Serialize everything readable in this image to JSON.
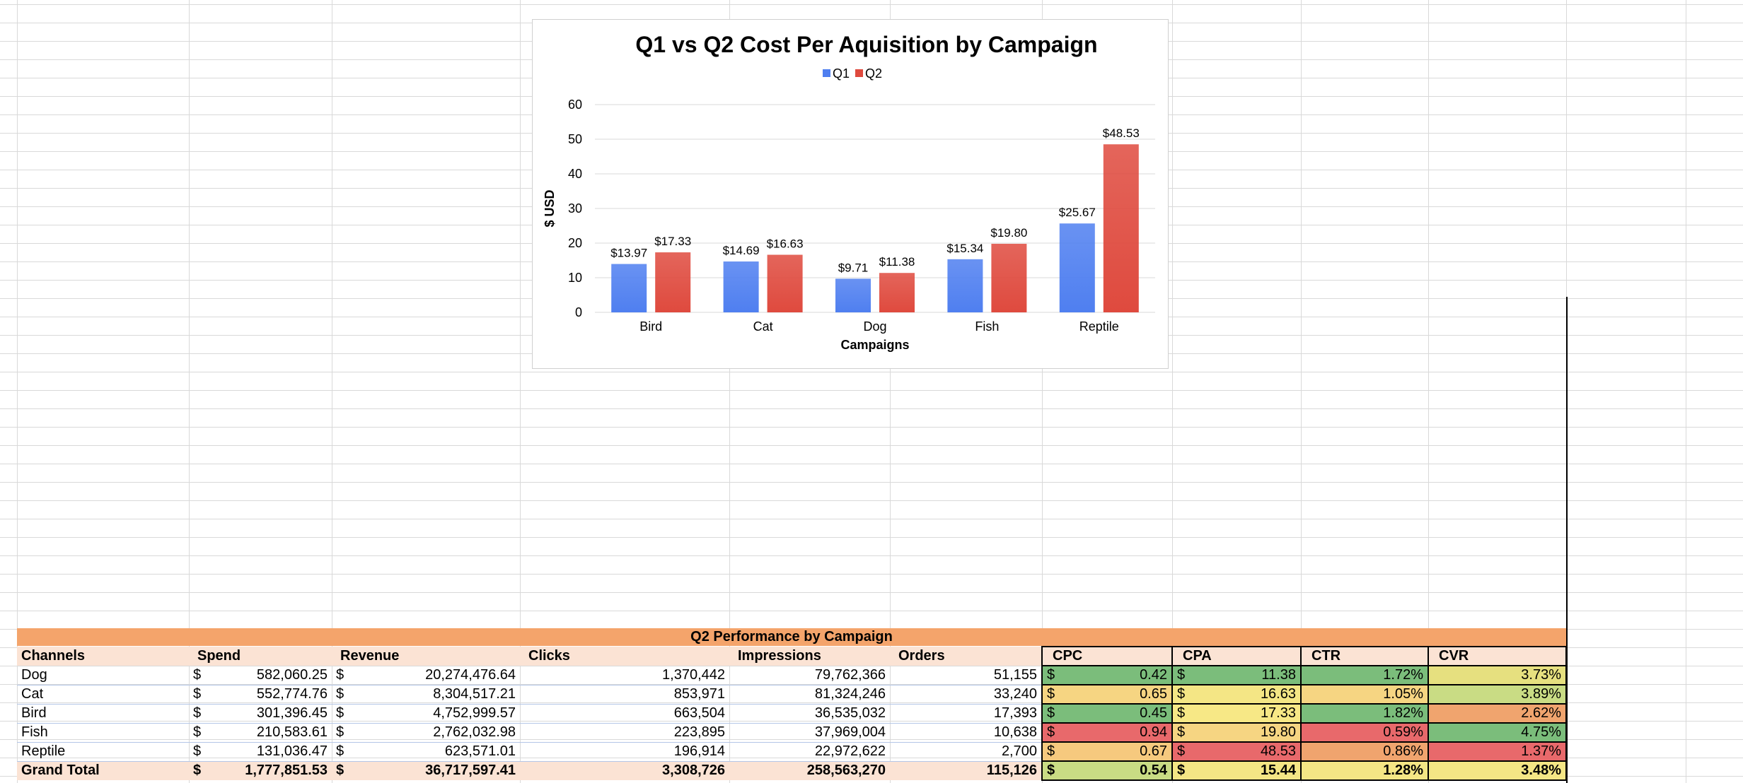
{
  "chart_data": {
    "type": "bar",
    "title": "Q1 vs Q2 Cost Per Aquisition by Campaign",
    "xlabel": "Campaigns",
    "ylabel": "$ USD",
    "ylim": [
      0,
      60
    ],
    "yticks": [
      0,
      10,
      20,
      30,
      40,
      50,
      60
    ],
    "grid": true,
    "legend_position": "top",
    "categories": [
      "Bird",
      "Cat",
      "Dog",
      "Fish",
      "Reptile"
    ],
    "series": [
      {
        "name": "Q1",
        "color": "#4f7ff0",
        "values": [
          13.97,
          14.69,
          9.71,
          15.34,
          25.67
        ],
        "labels": [
          "$13.97",
          "$14.69",
          "$9.71",
          "$15.34",
          "$25.67"
        ]
      },
      {
        "name": "Q2",
        "color": "#df4a3e",
        "values": [
          17.33,
          16.63,
          11.38,
          19.8,
          48.53
        ],
        "labels": [
          "$17.33",
          "$16.63",
          "$11.38",
          "$19.80",
          "$48.53"
        ]
      }
    ]
  },
  "table": {
    "title": "Q2 Performance by Campaign",
    "headers": [
      "Channels",
      "Spend",
      "Revenue",
      "Clicks",
      "Impressions",
      "Orders",
      "CPC",
      "CPA",
      "CTR",
      "CVR"
    ],
    "currency_symbol": "$",
    "rows": [
      {
        "channel": "Dog",
        "spend": "582,060.25",
        "revenue": "20,274,476.64",
        "clicks": "1,370,442",
        "impressions": "79,762,366",
        "orders": "51,155",
        "cpc": "0.42",
        "cpa": "11.38",
        "ctr": "1.72%",
        "cvr": "3.73%",
        "colors": {
          "cpc": "#7bbd7b",
          "cpa": "#7bbd7b",
          "ctr": "#7bbd7b",
          "cvr": "#e6e07f"
        }
      },
      {
        "channel": "Cat",
        "spend": "552,774.76",
        "revenue": "8,304,517.21",
        "clicks": "853,971",
        "impressions": "81,324,246",
        "orders": "33,240",
        "cpc": "0.65",
        "cpa": "16.63",
        "ctr": "1.05%",
        "cvr": "3.89%",
        "colors": {
          "cpc": "#f6d582",
          "cpa": "#f4e685",
          "ctr": "#f6d582",
          "cvr": "#c9dc84"
        }
      },
      {
        "channel": "Bird",
        "spend": "301,396.45",
        "revenue": "4,752,999.57",
        "clicks": "663,504",
        "impressions": "36,535,032",
        "orders": "17,393",
        "cpc": "0.45",
        "cpa": "17.33",
        "ctr": "1.82%",
        "cvr": "2.62%",
        "colors": {
          "cpc": "#7bbd7b",
          "cpa": "#f7e886",
          "ctr": "#7bbd7b",
          "cvr": "#f0a46e"
        }
      },
      {
        "channel": "Fish",
        "spend": "210,583.61",
        "revenue": "2,762,032.98",
        "clicks": "223,895",
        "impressions": "37,969,004",
        "orders": "10,638",
        "cpc": "0.94",
        "cpa": "19.80",
        "ctr": "0.59%",
        "cvr": "4.75%",
        "colors": {
          "cpc": "#e8696b",
          "cpa": "#f6d582",
          "ctr": "#e8696b",
          "cvr": "#7bbd7b"
        }
      },
      {
        "channel": "Reptile",
        "spend": "131,036.47",
        "revenue": "623,571.01",
        "clicks": "196,914",
        "impressions": "22,972,622",
        "orders": "2,700",
        "cpc": "0.67",
        "cpa": "48.53",
        "ctr": "0.86%",
        "cvr": "1.37%",
        "colors": {
          "cpc": "#f6c97e",
          "cpa": "#e8696b",
          "ctr": "#f0a46e",
          "cvr": "#e8696b"
        }
      }
    ],
    "total": {
      "channel": "Grand Total",
      "spend": "1,777,851.53",
      "revenue": "36,717,597.41",
      "clicks": "3,308,726",
      "impressions": "258,563,270",
      "orders": "115,126",
      "cpc": "0.54",
      "cpa": "15.44",
      "ctr": "1.28%",
      "cvr": "3.48%",
      "colors": {
        "cpc": "#c9dc84",
        "cpa": "#f4e685",
        "ctr": "#f4e685",
        "cvr": "#f4e685"
      }
    }
  }
}
